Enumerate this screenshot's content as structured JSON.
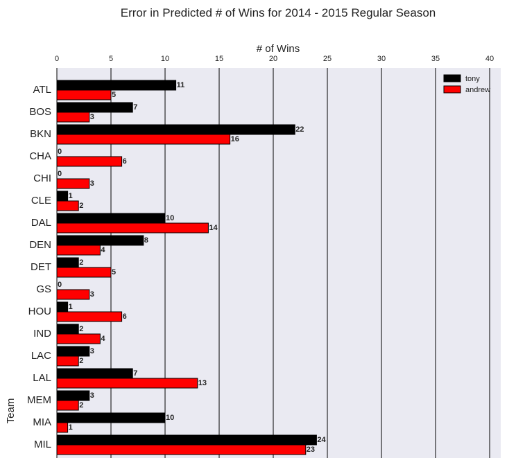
{
  "chart_data": {
    "type": "bar",
    "orientation": "horizontal",
    "title": "Error in Predicted # of Wins for 2014 - 2015 Regular Season",
    "xlabel": "# of Wins",
    "ylabel": "Team",
    "xlim": [
      0,
      41
    ],
    "xticks": [
      0,
      5,
      10,
      15,
      20,
      25,
      30,
      35,
      40
    ],
    "xaxis_position": "top",
    "grid": "vertical",
    "legend_position": "top-right",
    "categories": [
      "ATL",
      "BOS",
      "BKN",
      "CHA",
      "CHI",
      "CLE",
      "DAL",
      "DEN",
      "DET",
      "GS",
      "HOU",
      "IND",
      "LAC",
      "LAL",
      "MEM",
      "MIA",
      "MIL"
    ],
    "series": [
      {
        "name": "tony",
        "color": "#000000",
        "values": [
          11,
          7,
          22,
          0,
          0,
          1,
          10,
          8,
          2,
          0,
          1,
          2,
          3,
          7,
          3,
          10,
          24
        ]
      },
      {
        "name": "andrew",
        "color": "#ff0000",
        "values": [
          5,
          3,
          16,
          6,
          3,
          2,
          14,
          4,
          5,
          3,
          6,
          4,
          2,
          13,
          2,
          1,
          23
        ]
      }
    ],
    "background_color": "#eaeaf2"
  }
}
